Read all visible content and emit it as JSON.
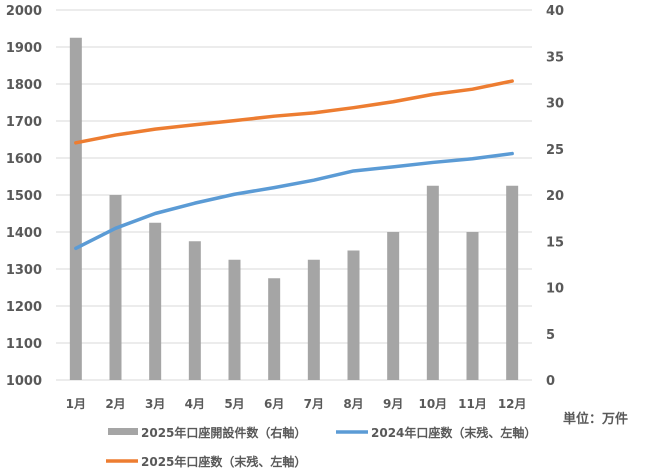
{
  "chart_data": {
    "type": "bar+line",
    "categories": [
      "1月",
      "2月",
      "3月",
      "4月",
      "5月",
      "6月",
      "7月",
      "8月",
      "9月",
      "10月",
      "11月",
      "12月"
    ],
    "left_axis": {
      "ylim": [
        1000,
        2000
      ],
      "ticks": [
        1000,
        1100,
        1200,
        1300,
        1400,
        1500,
        1600,
        1700,
        1800,
        1900,
        2000
      ]
    },
    "right_axis": {
      "ylim": [
        0,
        40
      ],
      "ticks": [
        0,
        5,
        10,
        15,
        20,
        25,
        30,
        35,
        40
      ]
    },
    "unit_label": "単位：万件",
    "grid": true,
    "legend_position": "bottom",
    "series": [
      {
        "name": "2025年口座開設件数（右軸）",
        "type": "bar",
        "axis": "right",
        "color": "#a5a5a5",
        "values": [
          37,
          20,
          17,
          15,
          13,
          11,
          13,
          14,
          16,
          21,
          16,
          21
        ]
      },
      {
        "name": "2024年口座数（末残、左軸）",
        "type": "line",
        "axis": "left",
        "color": "#5b9bd5",
        "values": [
          1356,
          1410,
          1450,
          1478,
          1502,
          1520,
          1540,
          1565,
          1576,
          1588,
          1598,
          1612
        ]
      },
      {
        "name": "2025年口座数（末残、左軸）",
        "type": "line",
        "axis": "left",
        "color": "#ed7d31",
        "values": [
          1641,
          1662,
          1678,
          1690,
          1701,
          1713,
          1722,
          1736,
          1752,
          1772,
          1786,
          1808
        ]
      }
    ]
  }
}
